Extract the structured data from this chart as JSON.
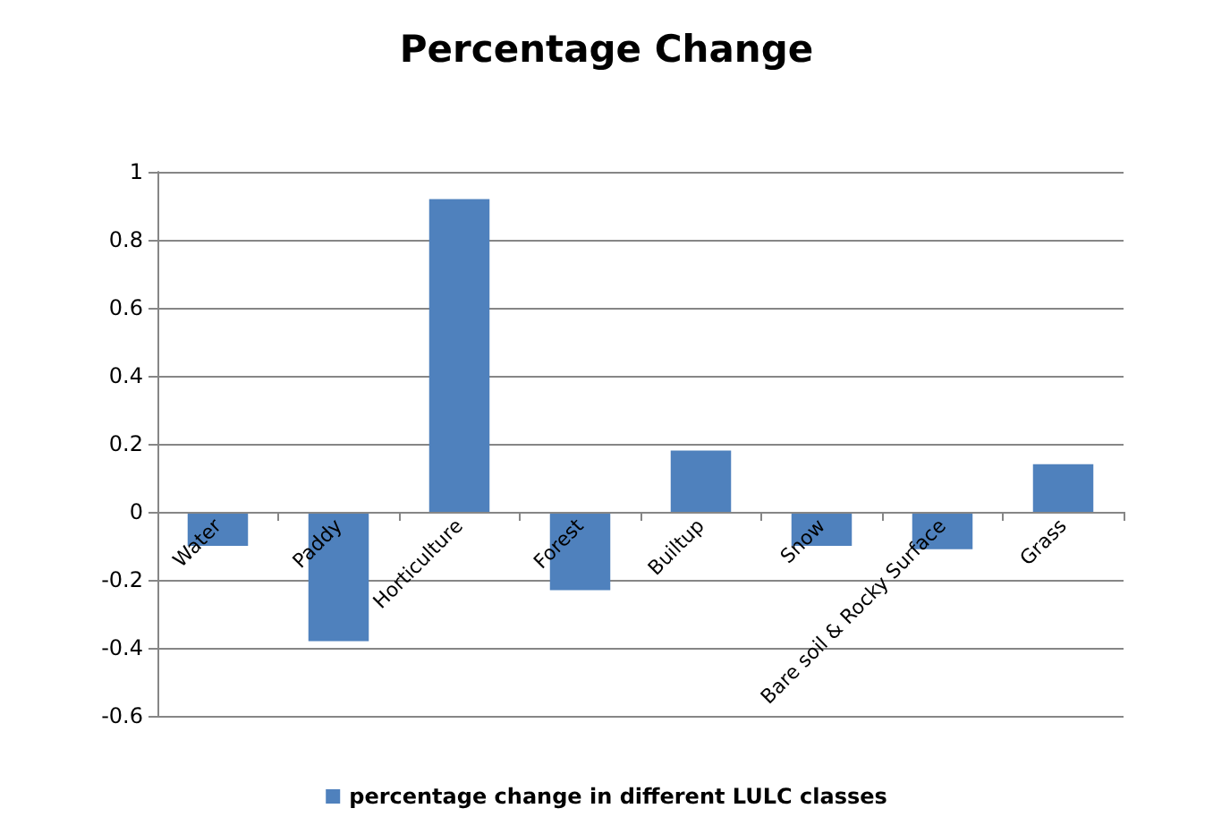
{
  "chart_data": {
    "type": "bar",
    "title": "Percentage Change",
    "categories": [
      "Water",
      "Paddy",
      "Horticulture",
      "Forest",
      "Builtup",
      "Snow",
      "Bare soil & Rocky Surface",
      "Grass"
    ],
    "series": [
      {
        "name": "percentage change in different LULC classes",
        "color": "#4f81bd",
        "values": [
          -0.1,
          -0.38,
          0.92,
          -0.23,
          0.18,
          -0.1,
          -0.11,
          0.14
        ]
      }
    ],
    "ylim": [
      -0.6,
      1
    ],
    "yticks": [
      -0.6,
      -0.4,
      -0.2,
      0,
      0.2,
      0.4,
      0.6,
      0.8,
      1
    ],
    "grid": "y",
    "legend": "bottom"
  }
}
